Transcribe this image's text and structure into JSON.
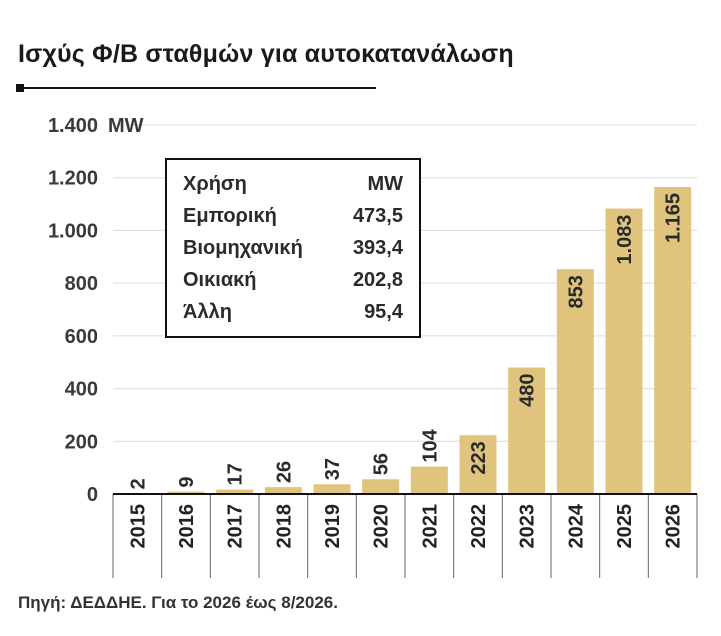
{
  "title": "Ισχύς Φ/Β σταθμών για αυτοκατανάλωση",
  "source": "Πηγή: ΔΕΔΔΗΕ. Για το 2026 έως 8/2026.",
  "colors": {
    "bar": "#e0c47e",
    "grid": "#dcdcdc",
    "axis": "#111111"
  },
  "chart_data": {
    "type": "bar",
    "title": "Ισχύς Φ/Β σταθμών για αυτοκατανάλωση",
    "ylabel": "MW",
    "ylim": [
      0,
      1400
    ],
    "yticks": [
      0,
      200,
      400,
      600,
      800,
      1000,
      1200,
      1400
    ],
    "ytick_labels": [
      "0",
      "200",
      "400",
      "600",
      "800",
      "1.000",
      "1.200",
      "1.400"
    ],
    "grid": true,
    "categories": [
      "2015",
      "2016",
      "2017",
      "2018",
      "2019",
      "2020",
      "2021",
      "2022",
      "2023",
      "2024",
      "2025",
      "2026"
    ],
    "values": [
      2,
      9,
      17,
      26,
      37,
      56,
      104,
      223,
      480,
      853,
      1083,
      1165
    ],
    "value_labels": [
      "2",
      "9",
      "17",
      "26",
      "37",
      "56",
      "104",
      "223",
      "480",
      "853",
      "1.083",
      "1.165"
    ]
  },
  "legend_table": {
    "headers": [
      "Χρήση",
      "MW"
    ],
    "rows": [
      [
        "Εμπορική",
        "473,5"
      ],
      [
        "Βιομηχανική",
        "393,4"
      ],
      [
        "Οικιακή",
        "202,8"
      ],
      [
        "Άλλη",
        "95,4"
      ]
    ]
  }
}
